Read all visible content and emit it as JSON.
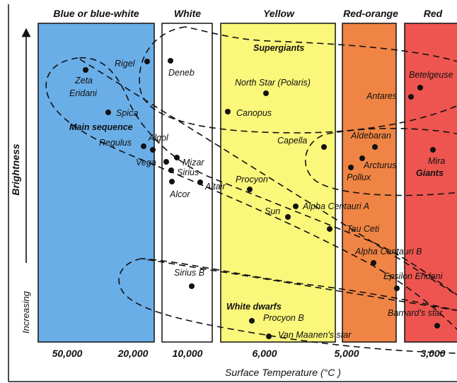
{
  "bands": [
    {
      "label": "Blue or blue-white",
      "color": "#6aaee8"
    },
    {
      "label": "White",
      "color": "#ffffff"
    },
    {
      "label": "Yellow",
      "color": "#fbf77a"
    },
    {
      "label": "Red-orange",
      "color": "#f08444"
    },
    {
      "label": "Red",
      "color": "#ef5550"
    }
  ],
  "axis": {
    "x_label": "Surface Temperature (°C )",
    "y_label_top": "Brightness",
    "y_label_bottom": "Increasing",
    "ticks": [
      "50,000",
      "20,000",
      "10,000",
      "6,000",
      "5,000",
      "3,000"
    ]
  },
  "regions": {
    "main_sequence": "Main sequence",
    "supergiants": "Supergiants",
    "giants": "Giants",
    "white_dwarfs": "White dwarfs"
  },
  "stars": [
    {
      "name": "Rigel"
    },
    {
      "name": "Deneb"
    },
    {
      "name": "Zeta"
    },
    {
      "name": "Eridani"
    },
    {
      "name": "Spica"
    },
    {
      "name": "Regulus"
    },
    {
      "name": "Algol"
    },
    {
      "name": "Vega"
    },
    {
      "name": "Mizar"
    },
    {
      "name": "Sirius"
    },
    {
      "name": "Alcor"
    },
    {
      "name": "Altair"
    },
    {
      "name": "North Star (Polaris)"
    },
    {
      "name": "Canopus"
    },
    {
      "name": "Capella"
    },
    {
      "name": "Procyon"
    },
    {
      "name": "Sun"
    },
    {
      "name": "Alpha Centauri A"
    },
    {
      "name": "Tau Ceti"
    },
    {
      "name": "Betelgeuse"
    },
    {
      "name": "Antares"
    },
    {
      "name": "Aldebaran"
    },
    {
      "name": "Arcturus"
    },
    {
      "name": "Pollux"
    },
    {
      "name": "Mira"
    },
    {
      "name": "Alpha Centauri B"
    },
    {
      "name": "Epsilon Eridani"
    },
    {
      "name": "Barnard's star"
    },
    {
      "name": "Sirius B"
    },
    {
      "name": "Procyon B"
    },
    {
      "name": "Van Maanen's star"
    }
  ]
}
